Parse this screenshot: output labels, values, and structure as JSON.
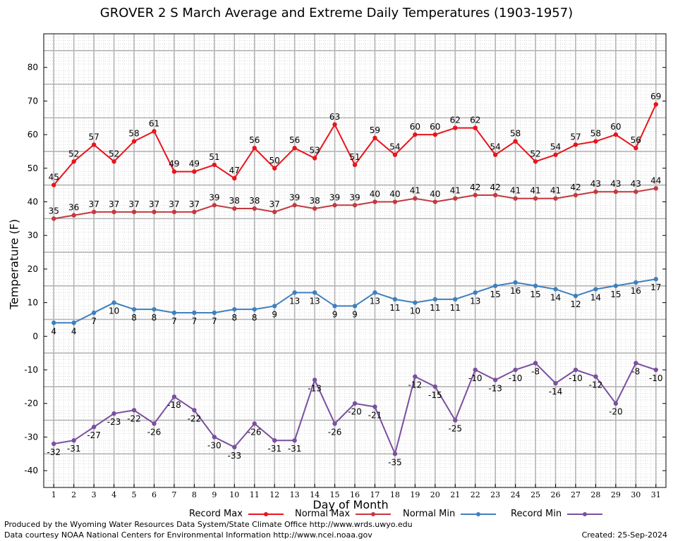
{
  "title": "GROVER 2 S March Average and Extreme Daily Temperatures (1903-1957)",
  "footer": {
    "produced": "Produced by the Wyoming Water Resources Data System/State Climate Office http://www.wrds.uwyo.edu",
    "courtesy": "Data courtesy NOAA National Centers for Environmental Information http://www.ncei.noaa.gov",
    "created": "Created:  25-Sep-2024"
  },
  "legend": {
    "record_max": "Record Max",
    "normal_max": "Normal Max",
    "normal_min": "Normal Min",
    "record_min": "Record Min"
  },
  "chart_data": {
    "type": "line",
    "title": "GROVER 2 S March Average and Extreme Daily Temperatures (1903-1957)",
    "xlabel": "Day of Month",
    "ylabel": "Temperature (F)",
    "x": [
      1,
      2,
      3,
      4,
      5,
      6,
      7,
      8,
      9,
      10,
      11,
      12,
      13,
      14,
      15,
      16,
      17,
      18,
      19,
      20,
      21,
      22,
      23,
      24,
      25,
      26,
      27,
      28,
      29,
      30,
      31
    ],
    "xlim": [
      0.5,
      31.5
    ],
    "ylim": [
      -45,
      90
    ],
    "yticks": [
      -40,
      -30,
      -20,
      -10,
      0,
      10,
      20,
      30,
      40,
      50,
      60,
      70,
      80
    ],
    "grid": true,
    "legend_position": "bottom",
    "series": [
      {
        "name": "Record Max",
        "color": "#e8141c",
        "values": [
          45,
          52,
          57,
          52,
          58,
          61,
          49,
          49,
          51,
          47,
          56,
          50,
          56,
          53,
          63,
          51,
          59,
          54,
          60,
          60,
          62,
          62,
          54,
          58,
          52,
          54,
          57,
          58,
          60,
          56,
          69
        ]
      },
      {
        "name": "Normal Max",
        "color": "#c4393f",
        "values": [
          35,
          36,
          37,
          37,
          37,
          37,
          37,
          37,
          39,
          38,
          38,
          37,
          39,
          38,
          39,
          39,
          40,
          40,
          41,
          40,
          41,
          42,
          42,
          41,
          41,
          41,
          42,
          43,
          43,
          43,
          44
        ]
      },
      {
        "name": "Normal Min",
        "color": "#3f7fbf",
        "values": [
          4,
          4,
          7,
          10,
          8,
          8,
          7,
          7,
          7,
          8,
          8,
          9,
          13,
          13,
          9,
          9,
          13,
          11,
          10,
          11,
          11,
          13,
          15,
          16,
          15,
          14,
          12,
          14,
          15,
          16,
          17
        ]
      },
      {
        "name": "Record Min",
        "color": "#7a4f9f",
        "values": [
          -32,
          -31,
          -27,
          -23,
          -22,
          -26,
          -18,
          -22,
          -30,
          -33,
          -26,
          -31,
          -31,
          -13,
          -26,
          -20,
          -21,
          -35,
          -12,
          -15,
          -25,
          -10,
          -13,
          -10,
          -8,
          -14,
          -10,
          -12,
          -20,
          -8,
          -10
        ]
      }
    ]
  }
}
